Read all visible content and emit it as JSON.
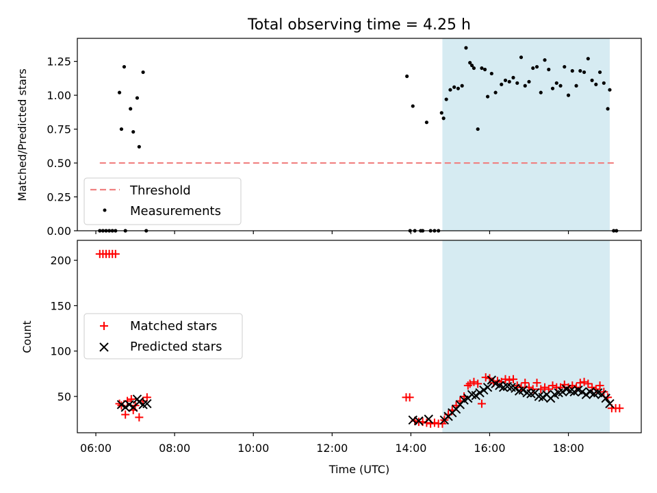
{
  "chart_data": [
    {
      "type": "scatter",
      "title": "Total observing time = 4.25 h",
      "ylabel": "Matched/Predicted stars",
      "ylim": [
        0,
        1.42
      ],
      "xlim": [
        5.53,
        19.85
      ],
      "yticks": [
        "0.00",
        "0.25",
        "0.50",
        "0.75",
        "1.00",
        "1.25"
      ],
      "ytick_values": [
        0,
        0.25,
        0.5,
        0.75,
        1.0,
        1.25
      ],
      "observing_window": [
        14.8,
        19.05
      ],
      "threshold": {
        "name": "Threshold",
        "value": 0.5,
        "x_range": [
          6.1,
          19.2
        ],
        "color": "#f08080"
      },
      "series": [
        {
          "name": "Measurements",
          "color": "#000000",
          "x": [
            6.1,
            6.18,
            6.26,
            6.34,
            6.42,
            6.5,
            6.6,
            6.75,
            6.65,
            6.72,
            6.88,
            6.95,
            7.05,
            7.1,
            7.2,
            7.28,
            13.9,
            13.98,
            14.05,
            14.1,
            14.25,
            14.3,
            14.4,
            14.5,
            14.6,
            14.7,
            14.78,
            14.83,
            14.9,
            15.0,
            15.1,
            15.2,
            15.3,
            15.4,
            15.5,
            15.55,
            15.6,
            15.7,
            15.8,
            15.88,
            15.95,
            16.05,
            16.15,
            16.3,
            16.4,
            16.5,
            16.6,
            16.7,
            16.8,
            16.9,
            17.0,
            17.1,
            17.2,
            17.3,
            17.4,
            17.5,
            17.6,
            17.7,
            17.8,
            17.9,
            18.0,
            18.1,
            18.2,
            18.3,
            18.4,
            18.5,
            18.6,
            18.7,
            18.8,
            18.9,
            19.0,
            19.05,
            19.15,
            19.22
          ],
          "y": [
            0,
            0,
            0,
            0,
            0,
            0,
            1.02,
            0,
            0.75,
            1.21,
            0.9,
            0.73,
            0.98,
            0.62,
            1.17,
            0,
            1.14,
            0,
            0.92,
            0,
            0,
            0,
            0.8,
            0,
            0,
            0,
            0.87,
            0.83,
            0.97,
            1.04,
            1.06,
            1.05,
            1.07,
            1.35,
            1.24,
            1.22,
            1.2,
            0.75,
            1.2,
            1.19,
            0.99,
            1.16,
            1.02,
            1.08,
            1.11,
            1.1,
            1.13,
            1.09,
            1.28,
            1.07,
            1.1,
            1.2,
            1.21,
            1.02,
            1.26,
            1.19,
            1.05,
            1.09,
            1.07,
            1.21,
            1.0,
            1.18,
            1.07,
            1.18,
            1.17,
            1.27,
            1.11,
            1.08,
            1.17,
            1.09,
            0.9,
            1.04,
            0,
            0
          ]
        }
      ]
    },
    {
      "type": "scatter",
      "xlabel": "Time (UTC)",
      "ylabel": "Count",
      "ylim": [
        10,
        222
      ],
      "xlim": [
        5.53,
        19.85
      ],
      "xticks": [
        "06:00",
        "08:00",
        "10:00",
        "12:00",
        "14:00",
        "16:00",
        "18:00"
      ],
      "xtick_values": [
        6,
        8,
        10,
        12,
        14,
        16,
        18
      ],
      "yticks": [
        "50",
        "100",
        "150",
        "200"
      ],
      "ytick_values": [
        50,
        100,
        150,
        200
      ],
      "observing_window": [
        14.8,
        19.05
      ],
      "series": [
        {
          "name": "Matched stars",
          "marker": "+",
          "color": "#ff0000",
          "x": [
            6.1,
            6.18,
            6.26,
            6.34,
            6.42,
            6.5,
            6.6,
            6.65,
            6.75,
            6.8,
            6.9,
            6.95,
            7.0,
            7.1,
            7.2,
            7.3,
            13.88,
            13.97,
            14.1,
            14.2,
            14.3,
            14.4,
            14.5,
            14.6,
            14.7,
            14.8,
            14.85,
            14.95,
            15.05,
            15.15,
            15.25,
            15.35,
            15.45,
            15.5,
            15.6,
            15.7,
            15.8,
            15.9,
            16.0,
            16.1,
            16.2,
            16.3,
            16.4,
            16.5,
            16.6,
            16.7,
            16.8,
            16.9,
            17.0,
            17.1,
            17.2,
            17.3,
            17.4,
            17.5,
            17.6,
            17.7,
            17.8,
            17.9,
            18.0,
            18.1,
            18.2,
            18.3,
            18.4,
            18.5,
            18.6,
            18.7,
            18.8,
            18.9,
            19.0,
            19.1,
            19.2,
            19.3
          ],
          "y": [
            207,
            207,
            207,
            207,
            207,
            207,
            42,
            40,
            30,
            45,
            47,
            35,
            40,
            27,
            45,
            49,
            49,
            49,
            23,
            22,
            22,
            21,
            20,
            21,
            20,
            20,
            24,
            30,
            35,
            40,
            45,
            50,
            62,
            64,
            66,
            64,
            42,
            71,
            70,
            65,
            67,
            66,
            69,
            68,
            69,
            62,
            60,
            65,
            60,
            58,
            65,
            58,
            60,
            58,
            62,
            60,
            60,
            63,
            60,
            62,
            60,
            65,
            66,
            64,
            60,
            58,
            62,
            55,
            49,
            37,
            37,
            37
          ]
        },
        {
          "name": "Predicted stars",
          "marker": "x",
          "color": "#000000",
          "x": [
            6.65,
            6.75,
            6.85,
            6.95,
            7.05,
            7.1,
            7.2,
            7.3,
            14.05,
            14.2,
            14.45,
            14.85,
            14.95,
            15.05,
            15.15,
            15.25,
            15.35,
            15.45,
            15.55,
            15.65,
            15.75,
            15.85,
            15.95,
            16.05,
            16.15,
            16.25,
            16.35,
            16.45,
            16.55,
            16.65,
            16.75,
            16.85,
            16.95,
            17.05,
            17.15,
            17.25,
            17.35,
            17.45,
            17.55,
            17.65,
            17.75,
            17.85,
            17.95,
            18.05,
            18.15,
            18.25,
            18.35,
            18.45,
            18.55,
            18.65,
            18.75,
            18.85,
            18.95,
            19.05
          ],
          "y": [
            41,
            38,
            41,
            38,
            47,
            44,
            41,
            42,
            24,
            23,
            25,
            24,
            28,
            32,
            36,
            41,
            46,
            48,
            52,
            51,
            54,
            57,
            60,
            68,
            64,
            62,
            60,
            61,
            60,
            59,
            56,
            57,
            54,
            53,
            54,
            50,
            49,
            52,
            48,
            52,
            54,
            55,
            58,
            56,
            55,
            57,
            55,
            52,
            55,
            53,
            54,
            52,
            48,
            42
          ]
        }
      ]
    }
  ]
}
